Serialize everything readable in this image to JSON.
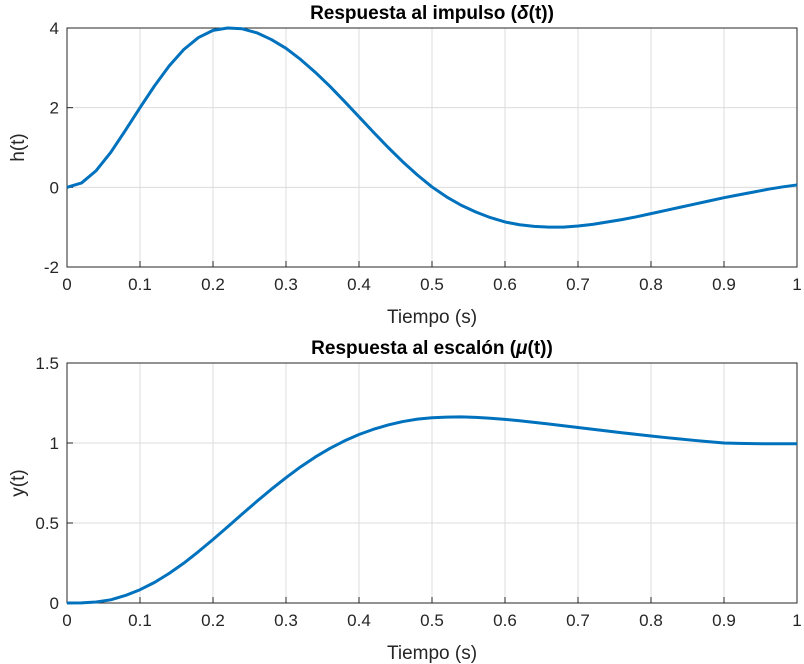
{
  "chart_data": [
    {
      "type": "line",
      "title_prefix": "Respuesta al impulso (",
      "title_symbol": "δ",
      "title_suffix": "(t))",
      "xlabel": "Tiempo (s)",
      "ylabel": "h(t)",
      "xlim": [
        0,
        1
      ],
      "ylim": [
        -2,
        4
      ],
      "xticks": [
        "0",
        "0.1",
        "0.2",
        "0.3",
        "0.4",
        "0.5",
        "0.6",
        "0.7",
        "0.8",
        "0.9",
        "1"
      ],
      "yticks": [
        "-2",
        "0",
        "2",
        "4"
      ],
      "grid": true,
      "color": "#0072BD",
      "series": [
        {
          "x": [
            0,
            0.02,
            0.04,
            0.06,
            0.08,
            0.1,
            0.12,
            0.14,
            0.16,
            0.18,
            0.2,
            0.22,
            0.24,
            0.26,
            0.28,
            0.3,
            0.32,
            0.34,
            0.36,
            0.38,
            0.4,
            0.42,
            0.44,
            0.46,
            0.48,
            0.5,
            0.52,
            0.54,
            0.56,
            0.58,
            0.6,
            0.62,
            0.64,
            0.66,
            0.68,
            0.7,
            0.72,
            0.74,
            0.76,
            0.78,
            0.8,
            0.82,
            0.84,
            0.86,
            0.88,
            0.9,
            0.92,
            0.94,
            0.96,
            0.98,
            1.0
          ],
          "y": [
            0,
            0.11,
            0.42,
            0.88,
            1.43,
            2.0,
            2.55,
            3.05,
            3.46,
            3.76,
            3.94,
            4.0,
            3.98,
            3.88,
            3.71,
            3.49,
            3.21,
            2.89,
            2.54,
            2.16,
            1.77,
            1.38,
            1.0,
            0.64,
            0.31,
            0.01,
            -0.24,
            -0.45,
            -0.62,
            -0.76,
            -0.87,
            -0.94,
            -0.98,
            -1.0,
            -1.0,
            -0.97,
            -0.93,
            -0.87,
            -0.81,
            -0.74,
            -0.66,
            -0.58,
            -0.5,
            -0.42,
            -0.34,
            -0.26,
            -0.19,
            -0.12,
            -0.05,
            0.01,
            0.06
          ]
        }
      ]
    },
    {
      "type": "line",
      "title_prefix": "Respuesta al escalón (",
      "title_symbol": "μ",
      "title_suffix": "(t))",
      "xlabel": "Tiempo (s)",
      "ylabel": "y(t)",
      "xlim": [
        0,
        1
      ],
      "ylim": [
        0,
        1.5
      ],
      "xticks": [
        "0",
        "0.1",
        "0.2",
        "0.3",
        "0.4",
        "0.5",
        "0.6",
        "0.7",
        "0.8",
        "0.9",
        "1"
      ],
      "yticks": [
        "0",
        "0.5",
        "1",
        "1.5"
      ],
      "grid": true,
      "color": "#0072BD",
      "series": [
        {
          "x": [
            0,
            0.02,
            0.04,
            0.06,
            0.08,
            0.1,
            0.12,
            0.14,
            0.16,
            0.18,
            0.2,
            0.22,
            0.24,
            0.26,
            0.28,
            0.3,
            0.32,
            0.34,
            0.36,
            0.38,
            0.4,
            0.42,
            0.44,
            0.46,
            0.48,
            0.5,
            0.52,
            0.54,
            0.56,
            0.58,
            0.6,
            0.62,
            0.64,
            0.66,
            0.68,
            0.7,
            0.72,
            0.74,
            0.76,
            0.78,
            0.8,
            0.82,
            0.84,
            0.86,
            0.88,
            0.9,
            0.92,
            0.94,
            0.96,
            0.98,
            1.0
          ],
          "y": [
            0,
            0.001,
            0.006,
            0.02,
            0.047,
            0.083,
            0.129,
            0.185,
            0.249,
            0.321,
            0.397,
            0.476,
            0.556,
            0.635,
            0.711,
            0.783,
            0.851,
            0.912,
            0.966,
            1.013,
            1.053,
            1.086,
            1.113,
            1.134,
            1.149,
            1.158,
            1.162,
            1.163,
            1.16,
            1.155,
            1.148,
            1.139,
            1.129,
            1.119,
            1.108,
            1.097,
            1.086,
            1.075,
            1.064,
            1.054,
            1.044,
            1.034,
            1.025,
            1.016,
            1.008,
            1.0,
            0.998,
            0.996,
            0.995,
            0.995,
            0.995
          ]
        }
      ]
    }
  ]
}
